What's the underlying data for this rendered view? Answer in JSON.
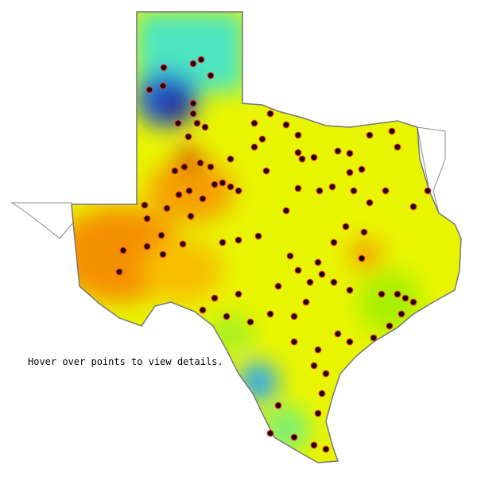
{
  "instruction": "Hover over points to view details."
}
